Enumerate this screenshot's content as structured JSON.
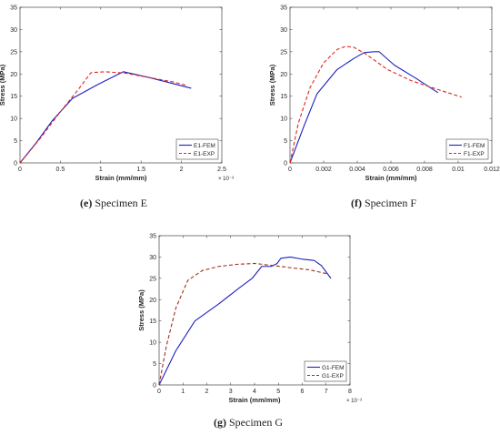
{
  "captions": [
    {
      "letter": "(e)",
      "text": " Specimen E"
    },
    {
      "letter": "(f)",
      "text": " Specimen F"
    },
    {
      "letter": "(g)",
      "text": " Specimen G"
    }
  ],
  "chart_data": [
    {
      "type": "line",
      "xlabel": "Strain (mm/mm)",
      "ylabel": "Stress (MPa)",
      "x_exponent": "× 10⁻³",
      "xlim": [
        0,
        2.5
      ],
      "ylim": [
        0,
        35
      ],
      "xticks": [
        0,
        0.5,
        1,
        1.5,
        2,
        2.5
      ],
      "xtick_labels": [
        "0",
        "0.5",
        "1",
        "1.5",
        "2",
        "2.5"
      ],
      "yticks": [
        0,
        5,
        10,
        15,
        20,
        25,
        30,
        35
      ],
      "ytick_labels": [
        "0",
        "5",
        "10",
        "15",
        "20",
        "25",
        "30",
        "35"
      ],
      "legend": "bottom-right",
      "series": [
        {
          "name": "E1-FEM",
          "color": "#1f1fbf",
          "style": "solid",
          "x": [
            0,
            0.2,
            0.4,
            0.65,
            0.95,
            1.28,
            1.6,
            2.12
          ],
          "y": [
            0,
            4.5,
            9.5,
            14.5,
            17.5,
            20.5,
            19.2,
            16.8
          ]
        },
        {
          "name": "E1-EXP",
          "color": "#e0241b",
          "style": "dashed",
          "x": [
            0,
            0.25,
            0.5,
            0.7,
            0.88,
            1.05,
            1.3,
            1.6,
            1.9,
            2.05
          ],
          "y": [
            0,
            5.5,
            11.5,
            16,
            20.3,
            20.5,
            20.2,
            19.2,
            18.2,
            17.5
          ]
        }
      ]
    },
    {
      "type": "line",
      "xlabel": "Strain (mm/mm)",
      "ylabel": "Stress (MPa)",
      "x_exponent": "",
      "xlim": [
        0,
        0.012
      ],
      "ylim": [
        0,
        35
      ],
      "xticks": [
        0,
        0.002,
        0.004,
        0.006,
        0.008,
        0.01,
        0.012
      ],
      "xtick_labels": [
        "0",
        "0.002",
        "0.004",
        "0.006",
        "0.008",
        "0.01",
        "0.012"
      ],
      "yticks": [
        0,
        5,
        10,
        15,
        20,
        25,
        30,
        35
      ],
      "ytick_labels": [
        "0",
        "5",
        "10",
        "15",
        "20",
        "25",
        "30",
        "35"
      ],
      "legend": "bottom-right",
      "series": [
        {
          "name": "F1-FEM",
          "color": "#1f1fbf",
          "style": "solid",
          "x": [
            0,
            0.0008,
            0.0016,
            0.0028,
            0.0038,
            0.0044,
            0.005,
            0.0053,
            0.0062,
            0.0075,
            0.0088
          ],
          "y": [
            0,
            8,
            15.5,
            21,
            23.5,
            24.8,
            25,
            25,
            22,
            19,
            15.8
          ]
        },
        {
          "name": "F1-EXP",
          "color": "#e0241b",
          "style": "dashed",
          "x": [
            0,
            0.0005,
            0.0012,
            0.002,
            0.0028,
            0.0033,
            0.0038,
            0.0045,
            0.0058,
            0.0072,
            0.0088,
            0.0102
          ],
          "y": [
            0,
            9,
            17,
            22.5,
            25.5,
            26.2,
            26,
            24.5,
            21,
            18.5,
            16.5,
            14.8
          ]
        }
      ]
    },
    {
      "type": "line",
      "xlabel": "Strain (mm/mm)",
      "ylabel": "Stress (MPa)",
      "x_exponent": "× 10⁻³",
      "xlim": [
        0,
        8
      ],
      "ylim": [
        0,
        35
      ],
      "xticks": [
        0,
        1,
        2,
        3,
        4,
        5,
        6,
        7,
        8
      ],
      "xtick_labels": [
        "0",
        "1",
        "2",
        "3",
        "4",
        "5",
        "6",
        "7",
        "8"
      ],
      "yticks": [
        0,
        5,
        10,
        15,
        20,
        25,
        30,
        35
      ],
      "ytick_labels": [
        "0",
        "5",
        "10",
        "15",
        "20",
        "25",
        "30",
        "35"
      ],
      "legend": "bottom-right",
      "series": [
        {
          "name": "G1-FEM",
          "color": "#1f1fbf",
          "style": "solid",
          "x": [
            0,
            0.7,
            1.5,
            2.5,
            3.3,
            3.9,
            4.3,
            4.7,
            4.95,
            5.1,
            5.5,
            6.0,
            6.5,
            6.8,
            7.2
          ],
          "y": [
            0,
            8,
            15,
            19,
            22.5,
            25,
            27.8,
            27.8,
            28.5,
            29.7,
            30,
            29.5,
            29.2,
            28,
            25
          ]
        },
        {
          "name": "G1-EXP",
          "color": "#a0301a",
          "style": "dashed",
          "x": [
            0,
            0.3,
            0.7,
            1.2,
            1.8,
            2.5,
            3.3,
            4.0,
            4.8,
            5.5,
            6.3,
            7.1
          ],
          "y": [
            0,
            9,
            18,
            24.5,
            26.8,
            27.8,
            28.3,
            28.5,
            28,
            27.5,
            27,
            26
          ]
        }
      ]
    }
  ]
}
